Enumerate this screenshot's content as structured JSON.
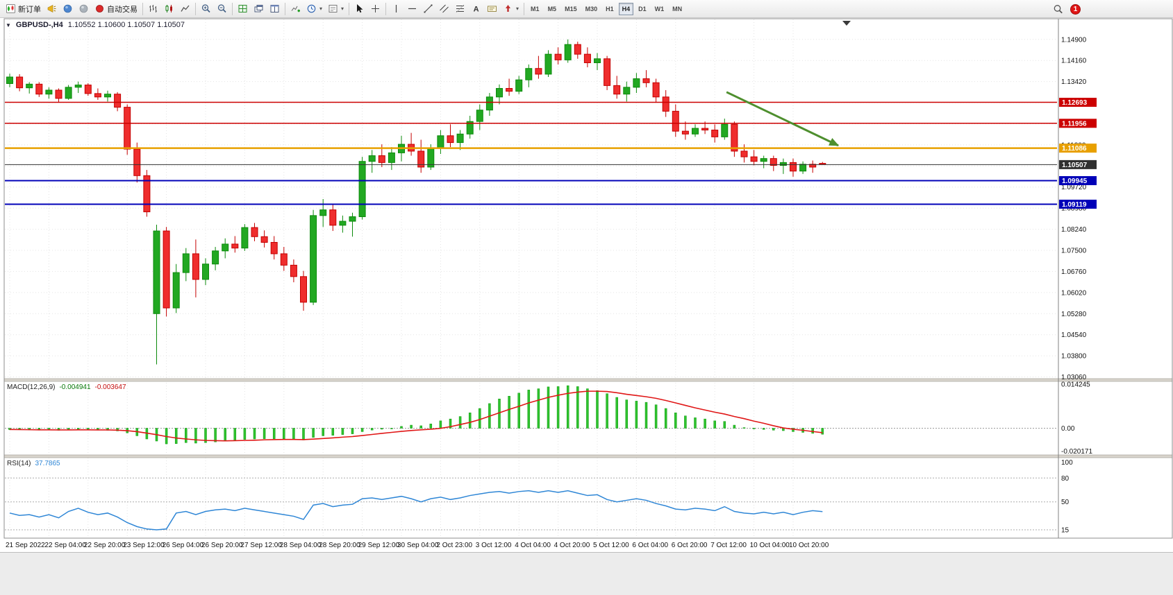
{
  "window": {
    "dropdown_marker": "▼",
    "title_symbol": "GBPUSD-,H4",
    "title_ohlc": "1.10552 1.10600 1.10507 1.10507"
  },
  "toolbar": {
    "new_order": "新订单",
    "autotrade": "自动交易",
    "timeframes": [
      "M1",
      "M5",
      "M15",
      "M30",
      "H1",
      "H4",
      "D1",
      "W1",
      "MN"
    ],
    "active_timeframe": "H4",
    "notification_count": "1"
  },
  "colors": {
    "candle_up": "#22a822",
    "candle_up_border": "#0c8a0c",
    "candle_down": "#ef2d2d",
    "candle_down_border": "#c40000",
    "macd_histogram": "#2fc32f",
    "macd_signal": "#e01616",
    "rsi_line": "#2e86d6",
    "resistance_red": "#cc0000",
    "pivot_orange": "#e8a000",
    "support_blue": "#0000b8",
    "current_price_black": "#303030",
    "arrow_green": "#4e8f2e"
  },
  "chart_data": {
    "type": "candlestick",
    "symbol": "GBPUSD-",
    "period": "H4",
    "grid": true,
    "label_every_n_bars": 4,
    "x_labels": [
      "21 Sep 2022",
      "22 Sep 04:00",
      "22 Sep 20:00",
      "23 Sep 12:00",
      "26 Sep 04:00",
      "26 Sep 20:00",
      "27 Sep 12:00",
      "28 Sep 04:00",
      "28 Sep 20:00",
      "29 Sep 12:00",
      "30 Sep 04:00",
      "2 Oct 23:00",
      "3 Oct 12:00",
      "4 Oct 04:00",
      "4 Oct 20:00",
      "5 Oct 12:00",
      "6 Oct 04:00",
      "6 Oct 20:00",
      "7 Oct 12:00",
      "10 Oct 04:00",
      "10 Oct 20:00"
    ],
    "y_axis": {
      "range": [
        1.03,
        1.156
      ],
      "labels": [
        "1.14900",
        "1.14160",
        "1.13420",
        "1.12680",
        "1.11940",
        "1.11200",
        "1.10460",
        "1.09720",
        "1.08980",
        "1.08240",
        "1.07500",
        "1.06760",
        "1.06020",
        "1.05280",
        "1.04540",
        "1.03800",
        "1.03060"
      ]
    },
    "candles": [
      [
        1.1335,
        1.137,
        1.1322,
        1.1358
      ],
      [
        1.1358,
        1.1368,
        1.1308,
        1.132
      ],
      [
        1.132,
        1.134,
        1.13,
        1.1333
      ],
      [
        1.1333,
        1.134,
        1.1288,
        1.1298
      ],
      [
        1.1298,
        1.1322,
        1.1282,
        1.1312
      ],
      [
        1.1312,
        1.1318,
        1.1268,
        1.1283
      ],
      [
        1.1283,
        1.133,
        1.1278,
        1.1322
      ],
      [
        1.1322,
        1.1342,
        1.1302,
        1.133
      ],
      [
        1.133,
        1.1336,
        1.1292,
        1.13
      ],
      [
        1.13,
        1.1318,
        1.1278,
        1.1288
      ],
      [
        1.1288,
        1.131,
        1.1272,
        1.1298
      ],
      [
        1.1298,
        1.1305,
        1.1238,
        1.1252
      ],
      [
        1.1252,
        1.1262,
        1.1085,
        1.1105
      ],
      [
        1.1105,
        1.1128,
        1.0988,
        1.1012
      ],
      [
        1.1012,
        1.1032,
        1.0868,
        1.0885
      ],
      [
        1.0528,
        1.084,
        1.035,
        1.0818
      ],
      [
        1.0818,
        1.0832,
        1.0518,
        1.0548
      ],
      [
        1.0548,
        1.0702,
        1.053,
        1.0672
      ],
      [
        1.0672,
        1.0758,
        1.0642,
        1.0738
      ],
      [
        1.0738,
        1.0788,
        1.0585,
        1.0648
      ],
      [
        1.0648,
        1.0722,
        1.0628,
        1.0702
      ],
      [
        1.0702,
        1.0762,
        1.068,
        1.0748
      ],
      [
        1.0748,
        1.0792,
        1.0722,
        1.0772
      ],
      [
        1.0772,
        1.08,
        1.0742,
        1.0758
      ],
      [
        1.0758,
        1.0842,
        1.0748,
        1.083
      ],
      [
        1.083,
        1.0846,
        1.0782,
        1.0798
      ],
      [
        1.0798,
        1.082,
        1.076,
        1.0778
      ],
      [
        1.0778,
        1.08,
        1.0718,
        1.0738
      ],
      [
        1.0738,
        1.0762,
        1.0678,
        1.0698
      ],
      [
        1.0698,
        1.0718,
        1.0638,
        1.0658
      ],
      [
        1.0658,
        1.0678,
        1.0538,
        1.0568
      ],
      [
        1.0568,
        1.0892,
        1.0558,
        1.0872
      ],
      [
        1.0872,
        1.093,
        1.0832,
        1.0892
      ],
      [
        1.0892,
        1.091,
        1.0818,
        1.0838
      ],
      [
        1.0838,
        1.0872,
        1.0812,
        1.0852
      ],
      [
        1.0852,
        1.0882,
        1.0798,
        1.0868
      ],
      [
        1.0868,
        1.1078,
        1.0858,
        1.1062
      ],
      [
        1.1062,
        1.1102,
        1.1022,
        1.1082
      ],
      [
        1.1082,
        1.1122,
        1.1042,
        1.1058
      ],
      [
        1.1058,
        1.1112,
        1.1032,
        1.1092
      ],
      [
        1.1092,
        1.1152,
        1.1062,
        1.1122
      ],
      [
        1.1122,
        1.1162,
        1.1082,
        1.1098
      ],
      [
        1.1098,
        1.1138,
        1.1022,
        1.1042
      ],
      [
        1.1042,
        1.1122,
        1.1032,
        1.1108
      ],
      [
        1.1108,
        1.1172,
        1.1088,
        1.1152
      ],
      [
        1.1152,
        1.1192,
        1.1112,
        1.1128
      ],
      [
        1.1128,
        1.1172,
        1.1102,
        1.1158
      ],
      [
        1.1158,
        1.1222,
        1.1142,
        1.1202
      ],
      [
        1.1202,
        1.1262,
        1.1172,
        1.1242
      ],
      [
        1.1242,
        1.1302,
        1.1222,
        1.1288
      ],
      [
        1.1288,
        1.1332,
        1.1262,
        1.1318
      ],
      [
        1.1318,
        1.1352,
        1.1292,
        1.1308
      ],
      [
        1.1308,
        1.1362,
        1.1298,
        1.1348
      ],
      [
        1.1348,
        1.1402,
        1.1322,
        1.1388
      ],
      [
        1.1388,
        1.1432,
        1.1352,
        1.1368
      ],
      [
        1.1368,
        1.1452,
        1.1358,
        1.1438
      ],
      [
        1.1438,
        1.1462,
        1.1402,
        1.1418
      ],
      [
        1.1418,
        1.149,
        1.1408,
        1.1472
      ],
      [
        1.1472,
        1.1482,
        1.1422,
        1.1438
      ],
      [
        1.1438,
        1.1462,
        1.1392,
        1.1408
      ],
      [
        1.1408,
        1.1442,
        1.1382,
        1.1422
      ],
      [
        1.1422,
        1.1432,
        1.1312,
        1.1328
      ],
      [
        1.1328,
        1.1362,
        1.1282,
        1.1298
      ],
      [
        1.1298,
        1.1342,
        1.1272,
        1.1322
      ],
      [
        1.1322,
        1.1372,
        1.1302,
        1.1352
      ],
      [
        1.1352,
        1.1382,
        1.1322,
        1.1338
      ],
      [
        1.1338,
        1.1352,
        1.1268,
        1.1288
      ],
      [
        1.1288,
        1.1312,
        1.1218,
        1.1238
      ],
      [
        1.1238,
        1.1262,
        1.1148,
        1.1168
      ],
      [
        1.1168,
        1.1202,
        1.1138,
        1.1158
      ],
      [
        1.1158,
        1.1192,
        1.1148,
        1.1178
      ],
      [
        1.1178,
        1.1202,
        1.1158,
        1.1172
      ],
      [
        1.1172,
        1.1192,
        1.1128,
        1.1148
      ],
      [
        1.1148,
        1.1212,
        1.1138,
        1.1192
      ],
      [
        1.1192,
        1.1202,
        1.1078,
        1.1098
      ],
      [
        1.1098,
        1.1122,
        1.1058,
        1.1078
      ],
      [
        1.1078,
        1.1102,
        1.1048,
        1.1062
      ],
      [
        1.1062,
        1.1082,
        1.1038,
        1.1072
      ],
      [
        1.1072,
        1.1082,
        1.1028,
        1.1048
      ],
      [
        1.1048,
        1.1072,
        1.1018,
        1.1058
      ],
      [
        1.1058,
        1.1072,
        1.1008,
        1.1028
      ],
      [
        1.1028,
        1.1062,
        1.1018,
        1.1052
      ],
      [
        1.1052,
        1.1065,
        1.1022,
        1.1042
      ],
      [
        1.10552,
        1.106,
        1.10507,
        1.10507
      ]
    ],
    "current_price": 1.10507,
    "price_lines": [
      {
        "price": 1.12693,
        "label": "1.12693",
        "color": "#cc0000",
        "width": 1.5
      },
      {
        "price": 1.11956,
        "label": "1.11956",
        "color": "#cc0000",
        "width": 1.5
      },
      {
        "price": 1.11086,
        "label": "1.11086",
        "color": "#e8a000",
        "width": 2.5
      },
      {
        "price": 1.10507,
        "label": "1.10507",
        "color": "#303030",
        "width": 1
      },
      {
        "price": 1.09945,
        "label": "1.09945",
        "color": "#0000b8",
        "width": 2
      },
      {
        "price": 1.09119,
        "label": "1.09119",
        "color": "#0000b8",
        "width": 2
      }
    ],
    "annotation_arrow": {
      "from_bar": 73.2,
      "from_price": 1.1305,
      "to_bar": 84.6,
      "to_price": 1.1118,
      "color": "#4e8f2e"
    },
    "macd": {
      "name_label": "MACD(12,26,9)",
      "main_value": "-0.004941",
      "signal_value": "-0.003647",
      "scale_labels": [
        "0.014245",
        "0.00",
        "-0.020171"
      ],
      "range": [
        -0.020171,
        0.014245
      ],
      "histogram": [
        -0.0012,
        -0.0013,
        -0.0014,
        -0.0016,
        -0.0015,
        -0.0017,
        -0.0014,
        -0.0012,
        -0.0013,
        -0.0016,
        -0.0017,
        -0.0022,
        -0.0038,
        -0.0062,
        -0.0088,
        -0.0105,
        -0.0128,
        -0.0126,
        -0.0118,
        -0.0122,
        -0.0118,
        -0.0112,
        -0.0105,
        -0.01,
        -0.0092,
        -0.0088,
        -0.0086,
        -0.0086,
        -0.0088,
        -0.009,
        -0.0096,
        -0.0075,
        -0.0062,
        -0.0058,
        -0.0052,
        -0.0046,
        -0.0028,
        -0.0015,
        -0.0008,
        -0.0002,
        0.0006,
        0.001,
        0.0008,
        0.0014,
        0.0024,
        0.003,
        0.0038,
        0.005,
        0.0064,
        0.008,
        0.0095,
        0.0104,
        0.0114,
        0.0124,
        0.0128,
        0.0134,
        0.0135,
        0.0138,
        0.0135,
        0.0128,
        0.0122,
        0.0112,
        0.01,
        0.0092,
        0.0088,
        0.0084,
        0.0076,
        0.0064,
        0.005,
        0.004,
        0.0034,
        0.003,
        0.0024,
        0.0022,
        0.001,
        0.0002,
        -0.0006,
        -0.001,
        -0.0016,
        -0.002,
        -0.0028,
        -0.0034,
        -0.0042,
        -0.004941
      ],
      "signal": [
        -0.001,
        -0.0011,
        -0.0012,
        -0.0013,
        -0.0013,
        -0.0014,
        -0.0014,
        -0.0013,
        -0.0013,
        -0.0014,
        -0.0014,
        -0.0016,
        -0.002,
        -0.0028,
        -0.004,
        -0.0053,
        -0.0068,
        -0.008,
        -0.0088,
        -0.0095,
        -0.01,
        -0.0102,
        -0.0103,
        -0.0102,
        -0.01,
        -0.0098,
        -0.0095,
        -0.0093,
        -0.0092,
        -0.0092,
        -0.0093,
        -0.0089,
        -0.0084,
        -0.0079,
        -0.0073,
        -0.0068,
        -0.006,
        -0.0051,
        -0.0042,
        -0.0034,
        -0.0026,
        -0.0019,
        -0.0013,
        -0.0008,
        -0.0001,
        0.0005,
        0.0012,
        0.0019,
        0.0028,
        0.0039,
        0.005,
        0.0061,
        0.0071,
        0.0082,
        0.0091,
        0.01,
        0.0107,
        0.0113,
        0.0117,
        0.012,
        0.012,
        0.0119,
        0.0115,
        0.011,
        0.0106,
        0.0102,
        0.0097,
        0.009,
        0.0082,
        0.0074,
        0.0066,
        0.0059,
        0.0052,
        0.0046,
        0.0038,
        0.0031,
        0.0023,
        0.0016,
        0.0008,
        0.0001,
        -0.0008,
        -0.0017,
        -0.0027,
        -0.003647
      ]
    },
    "rsi": {
      "name_label": "RSI(14)",
      "value": "37.7865",
      "scale_labels": [
        "100",
        "80",
        "50",
        "15"
      ],
      "levels": [
        80,
        50,
        15
      ],
      "range": [
        8,
        102
      ],
      "values": [
        36,
        33,
        34,
        31,
        34,
        30,
        38,
        42,
        37,
        34,
        36,
        31,
        24,
        19,
        16,
        15,
        16,
        36,
        38,
        34,
        38,
        40,
        41,
        39,
        42,
        40,
        38,
        36,
        34,
        32,
        28,
        46,
        48,
        44,
        46,
        47,
        54,
        55,
        53,
        55,
        57,
        54,
        50,
        54,
        56,
        53,
        55,
        58,
        60,
        62,
        63,
        61,
        63,
        64,
        62,
        64,
        62,
        64,
        61,
        58,
        59,
        53,
        50,
        52,
        54,
        52,
        48,
        45,
        41,
        40,
        42,
        41,
        39,
        44,
        38,
        36,
        35,
        37,
        35,
        37,
        34,
        37,
        39,
        37.7865
      ]
    }
  }
}
